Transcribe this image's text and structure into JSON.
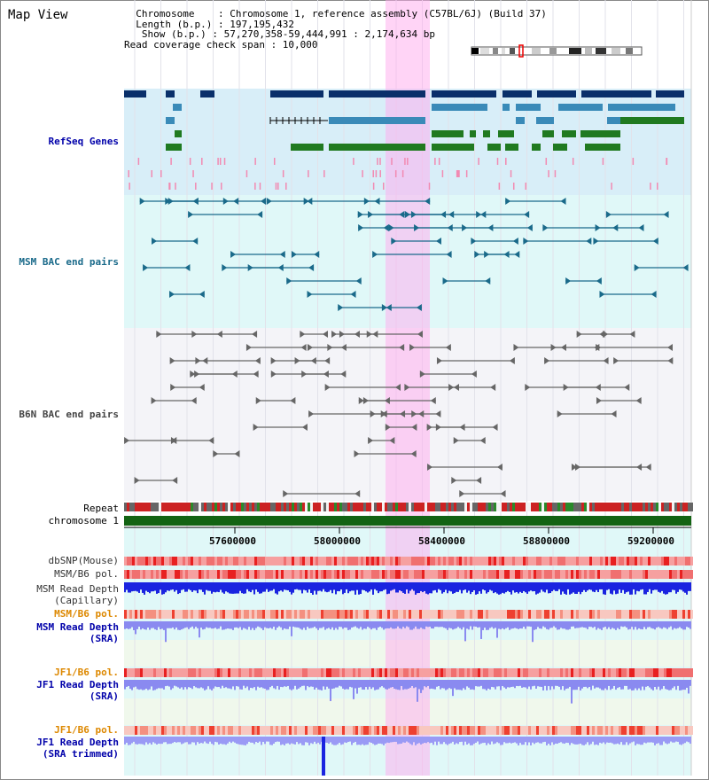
{
  "header": {
    "title": "Map View",
    "info_lines": [
      "  Chromosome    : Chromosome 1, reference assembly (C57BL/6J) (Build 37)",
      "  Length (b.p.) : 197,195,432",
      "   Show (b.p.) : 57,270,358-59,444,991 : 2,174,634 bp",
      "Read coverage check span : 10,000"
    ]
  },
  "tracks": {
    "refseq": "RefSeq Genes",
    "msm_bac": "MSM BAC end pairs",
    "b6n_bac": "B6N BAC end pairs",
    "repeat": "Repeat",
    "chromosome": "chromosome 1",
    "dbsnp": "dbSNP(Mouse)",
    "msm_b6_pol_1": "MSM/B6 pol.",
    "msm_read_depth_cap_1": "MSM Read Depth",
    "msm_read_depth_cap_2": "(Capillary)",
    "msm_b6_pol_2": "MSM/B6 pol.",
    "msm_read_depth_sra_1": "MSM Read Depth",
    "msm_read_depth_sra_2": "(SRA)",
    "jf1_b6_pol_1": "JF1/B6 pol.",
    "jf1_read_depth_1": "JF1 Read Depth",
    "jf1_read_depth_2": "(SRA)",
    "jf1_b6_pol_2": "JF1/B6 pol.",
    "jf1_trimmed_1": "JF1 Read Depth",
    "jf1_trimmed_2": "(SRA trimmed)"
  },
  "axis": {
    "ticks": [
      "57600000",
      "58000000",
      "58400000",
      "58800000",
      "59200000"
    ]
  },
  "colors": {
    "label_blue": "#0000aa",
    "label_teal": "#1a6a8a",
    "label_gray": "#444444",
    "label_orange": "#dd8800",
    "highlight": "#ffaaee"
  }
}
